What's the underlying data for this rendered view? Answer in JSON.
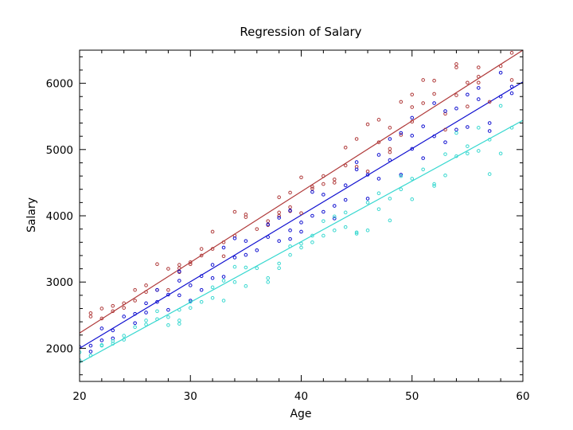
{
  "chart_data": {
    "type": "scatter",
    "title": "Regression of Salary",
    "xlabel": "Age",
    "ylabel": "Salary",
    "xlim": [
      20,
      60
    ],
    "ylim": [
      1500,
      6500
    ],
    "xticks": [
      20,
      30,
      40,
      50,
      60
    ],
    "yticks": [
      2000,
      3000,
      4000,
      5000,
      6000
    ],
    "grid": false,
    "legend": "none",
    "series": [
      {
        "color": "#b03a3a",
        "fit": {
          "x": [
            20,
            60
          ],
          "y": [
            2230,
            6500
          ]
        },
        "points": [
          [
            21,
            2530
          ],
          [
            21,
            2480
          ],
          [
            22,
            2600
          ],
          [
            22,
            2450
          ],
          [
            23,
            2640
          ],
          [
            23,
            2560
          ],
          [
            24,
            2680
          ],
          [
            24,
            2610
          ],
          [
            25,
            2880
          ],
          [
            25,
            2720
          ],
          [
            26,
            2950
          ],
          [
            26,
            2850
          ],
          [
            27,
            3270
          ],
          [
            27,
            2880
          ],
          [
            28,
            3200
          ],
          [
            28,
            2880
          ],
          [
            29,
            3260
          ],
          [
            29,
            3210
          ],
          [
            29,
            3150
          ],
          [
            30,
            3300
          ],
          [
            30,
            3270
          ],
          [
            31,
            3500
          ],
          [
            31,
            3400
          ],
          [
            32,
            3760
          ],
          [
            32,
            3500
          ],
          [
            33,
            3600
          ],
          [
            33,
            3390
          ],
          [
            34,
            4060
          ],
          [
            34,
            3700
          ],
          [
            35,
            4020
          ],
          [
            35,
            3980
          ],
          [
            36,
            3800
          ],
          [
            37,
            3920
          ],
          [
            37,
            3860
          ],
          [
            38,
            4280
          ],
          [
            38,
            4000
          ],
          [
            38,
            4050
          ],
          [
            39,
            4350
          ],
          [
            39,
            4130
          ],
          [
            39,
            4070
          ],
          [
            40,
            4580
          ],
          [
            40,
            4040
          ],
          [
            41,
            4440
          ],
          [
            41,
            4410
          ],
          [
            42,
            4600
          ],
          [
            42,
            4480
          ],
          [
            43,
            4550
          ],
          [
            43,
            4500
          ],
          [
            44,
            5030
          ],
          [
            44,
            4760
          ],
          [
            45,
            5160
          ],
          [
            45,
            4740
          ],
          [
            46,
            5380
          ],
          [
            46,
            4670
          ],
          [
            47,
            5450
          ],
          [
            47,
            5110
          ],
          [
            48,
            5330
          ],
          [
            48,
            5010
          ],
          [
            48,
            4960
          ],
          [
            49,
            5720
          ],
          [
            49,
            5220
          ],
          [
            50,
            5830
          ],
          [
            50,
            5420
          ],
          [
            50,
            5640
          ],
          [
            51,
            6050
          ],
          [
            51,
            5700
          ],
          [
            52,
            6040
          ],
          [
            52,
            5840
          ],
          [
            53,
            5540
          ],
          [
            53,
            5300
          ],
          [
            54,
            6290
          ],
          [
            54,
            6240
          ],
          [
            54,
            5820
          ],
          [
            55,
            6010
          ],
          [
            55,
            5650
          ],
          [
            56,
            6240
          ],
          [
            56,
            6100
          ],
          [
            56,
            6010
          ],
          [
            57,
            5720
          ],
          [
            58,
            6260
          ],
          [
            59,
            6460
          ],
          [
            59,
            6050
          ]
        ]
      },
      {
        "color": "#1010d0",
        "fit": {
          "x": [
            20,
            60
          ],
          "y": [
            2000,
            6020
          ]
        },
        "points": [
          [
            20,
            2020
          ],
          [
            21,
            2040
          ],
          [
            21,
            1950
          ],
          [
            22,
            2300
          ],
          [
            22,
            2120
          ],
          [
            23,
            2270
          ],
          [
            23,
            2150
          ],
          [
            24,
            2480
          ],
          [
            25,
            2520
          ],
          [
            25,
            2380
          ],
          [
            26,
            2680
          ],
          [
            26,
            2540
          ],
          [
            27,
            2880
          ],
          [
            27,
            2700
          ],
          [
            28,
            2810
          ],
          [
            28,
            2580
          ],
          [
            29,
            3160
          ],
          [
            29,
            3020
          ],
          [
            29,
            2800
          ],
          [
            30,
            2950
          ],
          [
            30,
            2720
          ],
          [
            31,
            3090
          ],
          [
            31,
            2880
          ],
          [
            32,
            3260
          ],
          [
            32,
            3060
          ],
          [
            33,
            3520
          ],
          [
            33,
            3080
          ],
          [
            34,
            3660
          ],
          [
            34,
            3370
          ],
          [
            35,
            3620
          ],
          [
            35,
            3410
          ],
          [
            36,
            3480
          ],
          [
            37,
            3870
          ],
          [
            37,
            3680
          ],
          [
            38,
            3970
          ],
          [
            38,
            3620
          ],
          [
            39,
            4080
          ],
          [
            39,
            3780
          ],
          [
            39,
            3650
          ],
          [
            40,
            3900
          ],
          [
            40,
            3760
          ],
          [
            41,
            4360
          ],
          [
            41,
            4000
          ],
          [
            42,
            4320
          ],
          [
            42,
            4060
          ],
          [
            43,
            4150
          ],
          [
            43,
            3960
          ],
          [
            44,
            4460
          ],
          [
            44,
            4240
          ],
          [
            45,
            4810
          ],
          [
            45,
            4700
          ],
          [
            46,
            4620
          ],
          [
            46,
            4260
          ],
          [
            47,
            4920
          ],
          [
            47,
            4560
          ],
          [
            48,
            5160
          ],
          [
            48,
            4840
          ],
          [
            49,
            5250
          ],
          [
            49,
            4620
          ],
          [
            50,
            5480
          ],
          [
            50,
            5210
          ],
          [
            50,
            5010
          ],
          [
            51,
            5350
          ],
          [
            51,
            4870
          ],
          [
            52,
            5700
          ],
          [
            52,
            5200
          ],
          [
            53,
            5580
          ],
          [
            53,
            5110
          ],
          [
            54,
            5620
          ],
          [
            54,
            5300
          ],
          [
            55,
            5830
          ],
          [
            55,
            5340
          ],
          [
            56,
            5930
          ],
          [
            56,
            5760
          ],
          [
            57,
            5400
          ],
          [
            57,
            5280
          ],
          [
            58,
            6160
          ],
          [
            58,
            5800
          ],
          [
            59,
            5950
          ],
          [
            59,
            5850
          ]
        ]
      },
      {
        "color": "#38d8d0",
        "fit": {
          "x": [
            20,
            60
          ],
          "y": [
            1780,
            5440
          ]
        },
        "points": [
          [
            20,
            1940
          ],
          [
            20,
            1820
          ],
          [
            21,
            1890
          ],
          [
            22,
            2050
          ],
          [
            22,
            2040
          ],
          [
            23,
            2110
          ],
          [
            23,
            2070
          ],
          [
            24,
            2190
          ],
          [
            24,
            2130
          ],
          [
            25,
            2320
          ],
          [
            26,
            2420
          ],
          [
            26,
            2360
          ],
          [
            27,
            2560
          ],
          [
            27,
            2440
          ],
          [
            28,
            2470
          ],
          [
            28,
            2350
          ],
          [
            29,
            2580
          ],
          [
            29,
            2420
          ],
          [
            29,
            2370
          ],
          [
            30,
            2700
          ],
          [
            30,
            2610
          ],
          [
            31,
            2700
          ],
          [
            32,
            2920
          ],
          [
            32,
            2760
          ],
          [
            33,
            3020
          ],
          [
            33,
            2720
          ],
          [
            34,
            3230
          ],
          [
            34,
            3000
          ],
          [
            35,
            3220
          ],
          [
            35,
            2940
          ],
          [
            36,
            3210
          ],
          [
            37,
            3060
          ],
          [
            37,
            3000
          ],
          [
            38,
            3280
          ],
          [
            38,
            3210
          ],
          [
            39,
            3540
          ],
          [
            39,
            3410
          ],
          [
            40,
            3580
          ],
          [
            40,
            3520
          ],
          [
            41,
            3700
          ],
          [
            41,
            3600
          ],
          [
            42,
            3920
          ],
          [
            42,
            3700
          ],
          [
            43,
            3990
          ],
          [
            43,
            3780
          ],
          [
            44,
            4050
          ],
          [
            44,
            3830
          ],
          [
            45,
            3750
          ],
          [
            45,
            3730
          ],
          [
            46,
            4200
          ],
          [
            46,
            3780
          ],
          [
            47,
            4340
          ],
          [
            47,
            4100
          ],
          [
            48,
            4260
          ],
          [
            48,
            3930
          ],
          [
            49,
            4600
          ],
          [
            49,
            4400
          ],
          [
            50,
            4560
          ],
          [
            50,
            4250
          ],
          [
            51,
            4700
          ],
          [
            52,
            4480
          ],
          [
            52,
            4450
          ],
          [
            53,
            4930
          ],
          [
            53,
            4610
          ],
          [
            54,
            5250
          ],
          [
            54,
            4900
          ],
          [
            55,
            5050
          ],
          [
            55,
            4940
          ],
          [
            56,
            5330
          ],
          [
            56,
            4980
          ],
          [
            57,
            5150
          ],
          [
            57,
            4630
          ],
          [
            58,
            5660
          ],
          [
            58,
            4940
          ],
          [
            59,
            5330
          ]
        ]
      }
    ]
  }
}
